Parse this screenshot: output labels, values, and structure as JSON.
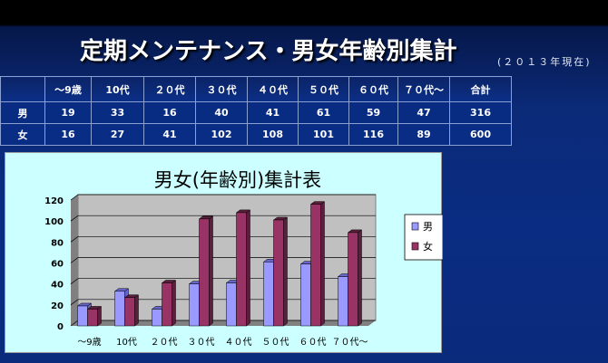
{
  "title": "定期メンテナンス・男女年齢別集計",
  "subtitle": "(２０１３年現在)",
  "table": {
    "headers": [
      "",
      "～9歳",
      "10代",
      "２０代",
      "３０代",
      "４０代",
      "５０代",
      "６０代",
      "７０代～",
      "合計"
    ],
    "rows": [
      [
        "男",
        "19",
        "33",
        "16",
        "40",
        "41",
        "61",
        "59",
        "47",
        "316"
      ],
      [
        "女",
        "16",
        "27",
        "41",
        "102",
        "108",
        "101",
        "116",
        "89",
        "600"
      ]
    ]
  },
  "chart_data": {
    "type": "bar",
    "title": "男女(年齢別)集計表",
    "categories": [
      "～9歳",
      "10代",
      "２０代",
      "３０代",
      "４０代",
      "５０代",
      "６０代",
      "７０代～"
    ],
    "series": [
      {
        "name": "男",
        "values": [
          19,
          33,
          16,
          40,
          41,
          61,
          59,
          47
        ],
        "color": "#9999ff"
      },
      {
        "name": "女",
        "values": [
          16,
          27,
          41,
          102,
          108,
          101,
          116,
          89
        ],
        "color": "#993366"
      }
    ],
    "yticks": [
      0,
      20,
      40,
      60,
      80,
      100,
      120
    ],
    "ylim": [
      0,
      120
    ],
    "grid": true,
    "legend": "right",
    "style": "3d-clustered-column"
  }
}
